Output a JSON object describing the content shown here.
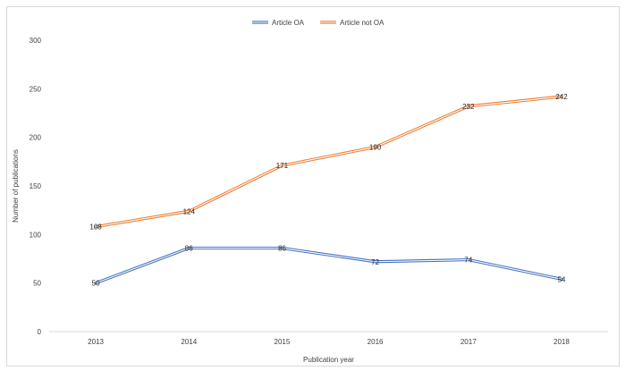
{
  "chart_data": {
    "type": "line",
    "categories": [
      "2013",
      "2014",
      "2015",
      "2016",
      "2017",
      "2018"
    ],
    "series": [
      {
        "name": "Article OA",
        "values": [
          50,
          86,
          86,
          72,
          74,
          54
        ],
        "color": "#4472c4"
      },
      {
        "name": "Article not OA",
        "values": [
          108,
          124,
          171,
          190,
          232,
          242
        ],
        "color": "#ed7d31"
      }
    ],
    "title": "",
    "xlabel": "Publication year",
    "ylabel": "Number of publications",
    "ylim": [
      0,
      300
    ],
    "yticks": [
      0,
      50,
      100,
      150,
      200,
      250,
      300
    ],
    "grid": false,
    "legend_position": "top-center",
    "data_labels": true
  }
}
